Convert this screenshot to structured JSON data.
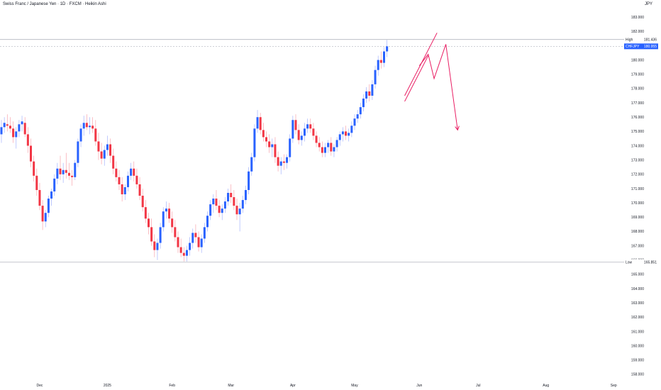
{
  "header": {
    "title": "Swiss Franc / Japanese Yen · 1D · FXCM · Heikin Ashi",
    "currency": "JPY"
  },
  "colors": {
    "up": "#2962ff",
    "down": "#f23645",
    "wick_up": "#a5b4fc",
    "wick_down": "#f8a5ad",
    "level_line": "#b2b5be",
    "trend_lines": "#e91e63",
    "price_badge": "#2962ff",
    "text": "#131722"
  },
  "chart_data": {
    "type": "candlestick",
    "style": "Heikin Ashi",
    "symbol": "CHFJPY",
    "ylim": [
      157.5,
      184
    ],
    "y_ticks": [
      "158.000",
      "159.000",
      "160.000",
      "161.000",
      "162.000",
      "163.000",
      "164.000",
      "165.000",
      "166.000",
      "167.000",
      "168.000",
      "169.000",
      "170.000",
      "171.000",
      "172.000",
      "173.000",
      "174.000",
      "175.000",
      "176.000",
      "177.000",
      "178.000",
      "179.000",
      "180.000",
      "181.000",
      "182.000",
      "183.000"
    ],
    "x_labels": [
      {
        "label": "Dec",
        "bar": 13
      },
      {
        "label": "2025",
        "bar": 36
      },
      {
        "label": "Feb",
        "bar": 58
      },
      {
        "label": "Mar",
        "bar": 78
      },
      {
        "label": "Apr",
        "bar": 99
      },
      {
        "label": "May",
        "bar": 120
      },
      {
        "label": "Jun",
        "bar": 142
      },
      {
        "label": "Jul",
        "bar": 162
      },
      {
        "label": "Aug",
        "bar": 185
      },
      {
        "label": "Sep",
        "bar": 208
      }
    ],
    "high": {
      "label": "High",
      "value": "181.436"
    },
    "low": {
      "label": "Low",
      "value": "165.851"
    },
    "last_price": {
      "symbol": "CHFJPY",
      "value": "180.955"
    },
    "ohlc": [
      [
        174.8,
        175.8,
        174.2,
        175.3
      ],
      [
        175.3,
        176.0,
        174.9,
        175.6
      ],
      [
        175.5,
        176.2,
        175.0,
        175.4
      ],
      [
        175.4,
        176.0,
        174.9,
        175.2
      ],
      [
        175.2,
        175.7,
        174.2,
        174.6
      ],
      [
        174.6,
        175.3,
        173.8,
        175.0
      ],
      [
        175.0,
        175.8,
        174.6,
        175.5
      ],
      [
        175.5,
        176.1,
        175.0,
        175.7
      ],
      [
        175.6,
        176.0,
        174.6,
        174.8
      ],
      [
        174.8,
        175.3,
        173.5,
        174.0
      ],
      [
        174.0,
        174.5,
        172.5,
        172.9
      ],
      [
        172.9,
        173.3,
        171.5,
        171.9
      ],
      [
        171.9,
        172.4,
        170.5,
        170.9
      ],
      [
        170.9,
        171.4,
        169.5,
        169.8
      ],
      [
        169.8,
        170.2,
        168.1,
        168.7
      ],
      [
        168.7,
        169.5,
        168.3,
        169.3
      ],
      [
        169.3,
        170.5,
        169.0,
        170.3
      ],
      [
        170.3,
        171.0,
        169.8,
        170.8
      ],
      [
        170.8,
        172.0,
        170.5,
        171.7
      ],
      [
        171.7,
        172.8,
        171.3,
        172.4
      ],
      [
        172.4,
        173.3,
        171.6,
        172.0
      ],
      [
        172.0,
        172.8,
        171.4,
        172.3
      ],
      [
        172.3,
        173.5,
        171.7,
        172.1
      ],
      [
        172.1,
        172.8,
        171.6,
        171.9
      ],
      [
        171.9,
        172.3,
        171.2,
        171.8
      ],
      [
        171.8,
        173.0,
        171.6,
        172.8
      ],
      [
        172.8,
        174.5,
        172.5,
        174.3
      ],
      [
        174.3,
        175.5,
        173.9,
        175.2
      ],
      [
        175.2,
        176.1,
        174.7,
        175.6
      ],
      [
        175.6,
        176.2,
        175.1,
        175.3
      ],
      [
        175.3,
        176.0,
        174.8,
        175.4
      ],
      [
        175.4,
        176.0,
        174.9,
        175.2
      ],
      [
        175.2,
        175.8,
        174.0,
        174.3
      ],
      [
        174.3,
        174.9,
        173.0,
        173.6
      ],
      [
        173.6,
        174.2,
        172.7,
        173.1
      ],
      [
        173.1,
        174.0,
        172.6,
        173.7
      ],
      [
        173.7,
        174.7,
        173.3,
        174.1
      ],
      [
        174.1,
        174.5,
        172.8,
        173.3
      ],
      [
        173.3,
        173.8,
        172.0,
        172.4
      ],
      [
        172.4,
        172.9,
        171.5,
        171.8
      ],
      [
        171.8,
        172.3,
        170.9,
        171.3
      ],
      [
        171.3,
        171.8,
        170.1,
        170.6
      ],
      [
        170.6,
        171.3,
        170.2,
        171.1
      ],
      [
        171.1,
        172.2,
        170.8,
        171.9
      ],
      [
        171.9,
        172.8,
        171.6,
        172.4
      ],
      [
        172.4,
        172.9,
        171.5,
        171.9
      ],
      [
        171.9,
        172.4,
        171.0,
        171.3
      ],
      [
        171.3,
        171.8,
        170.2,
        170.5
      ],
      [
        170.5,
        171.0,
        169.4,
        169.7
      ],
      [
        169.7,
        170.2,
        168.6,
        168.9
      ],
      [
        168.9,
        169.3,
        167.8,
        168.3
      ],
      [
        168.3,
        168.9,
        167.0,
        167.3
      ],
      [
        167.3,
        167.8,
        166.2,
        166.7
      ],
      [
        166.7,
        167.5,
        166.0,
        167.2
      ],
      [
        167.2,
        168.6,
        166.8,
        168.3
      ],
      [
        168.3,
        169.7,
        168.0,
        169.4
      ],
      [
        169.4,
        170.1,
        168.9,
        169.6
      ],
      [
        169.6,
        170.0,
        168.6,
        168.9
      ],
      [
        168.9,
        169.4,
        167.9,
        168.3
      ],
      [
        168.3,
        168.8,
        167.3,
        167.6
      ],
      [
        167.6,
        168.0,
        166.5,
        166.9
      ],
      [
        166.9,
        167.5,
        166.2,
        166.5
      ],
      [
        166.5,
        166.9,
        165.9,
        166.3
      ],
      [
        166.3,
        167.0,
        165.9,
        166.7
      ],
      [
        166.7,
        167.6,
        166.3,
        167.2
      ],
      [
        167.2,
        168.2,
        166.8,
        167.9
      ],
      [
        167.9,
        168.5,
        167.2,
        167.6
      ],
      [
        167.6,
        168.0,
        166.6,
        166.9
      ],
      [
        166.9,
        167.8,
        166.5,
        167.5
      ],
      [
        167.5,
        168.6,
        167.2,
        168.3
      ],
      [
        168.3,
        169.4,
        168.0,
        169.1
      ],
      [
        169.1,
        170.2,
        168.8,
        169.9
      ],
      [
        169.9,
        170.6,
        169.3,
        170.3
      ],
      [
        170.3,
        170.9,
        169.5,
        169.8
      ],
      [
        169.8,
        170.2,
        169.0,
        169.3
      ],
      [
        169.3,
        169.9,
        168.8,
        169.6
      ],
      [
        169.6,
        170.4,
        169.3,
        170.1
      ],
      [
        170.1,
        171.0,
        169.8,
        170.7
      ],
      [
        170.7,
        171.3,
        170.0,
        170.4
      ],
      [
        170.4,
        170.9,
        169.5,
        169.8
      ],
      [
        169.8,
        170.3,
        168.8,
        169.2
      ],
      [
        169.2,
        170.0,
        168.0,
        169.6
      ],
      [
        169.6,
        170.5,
        169.3,
        170.2
      ],
      [
        170.2,
        171.2,
        169.9,
        170.9
      ],
      [
        170.9,
        172.5,
        170.6,
        172.2
      ],
      [
        172.2,
        173.5,
        171.9,
        173.2
      ],
      [
        173.2,
        175.5,
        172.9,
        175.2
      ],
      [
        175.2,
        176.5,
        174.9,
        176.0
      ],
      [
        176.0,
        176.3,
        174.8,
        175.1
      ],
      [
        175.1,
        175.6,
        174.3,
        174.6
      ],
      [
        174.6,
        175.0,
        173.9,
        174.3
      ],
      [
        174.3,
        174.8,
        173.5,
        173.9
      ],
      [
        173.9,
        174.5,
        173.2,
        174.1
      ],
      [
        174.1,
        174.6,
        172.8,
        173.2
      ],
      [
        173.2,
        173.6,
        172.2,
        172.6
      ],
      [
        172.6,
        173.2,
        172.0,
        172.9
      ],
      [
        172.9,
        173.4,
        172.3,
        172.8
      ],
      [
        172.8,
        173.4,
        172.4,
        173.2
      ],
      [
        173.2,
        174.8,
        172.9,
        174.5
      ],
      [
        174.5,
        176.1,
        174.2,
        175.8
      ],
      [
        175.8,
        176.2,
        174.8,
        175.1
      ],
      [
        175.1,
        175.5,
        174.1,
        174.4
      ],
      [
        174.4,
        175.0,
        174.0,
        174.7
      ],
      [
        174.7,
        175.6,
        174.3,
        175.2
      ],
      [
        175.2,
        175.9,
        174.9,
        175.5
      ],
      [
        175.5,
        175.9,
        174.9,
        175.2
      ],
      [
        175.2,
        175.6,
        174.4,
        174.7
      ],
      [
        174.7,
        175.0,
        173.9,
        174.2
      ],
      [
        174.2,
        174.6,
        173.6,
        173.9
      ],
      [
        173.9,
        174.3,
        173.2,
        173.5
      ],
      [
        173.5,
        174.2,
        173.2,
        173.9
      ],
      [
        173.9,
        174.4,
        173.5,
        174.2
      ],
      [
        174.2,
        174.6,
        173.3,
        173.6
      ],
      [
        173.6,
        174.1,
        173.2,
        173.9
      ],
      [
        173.9,
        174.6,
        173.6,
        174.4
      ],
      [
        174.4,
        175.0,
        174.0,
        174.8
      ],
      [
        174.8,
        175.3,
        174.3,
        175.0
      ],
      [
        175.0,
        175.4,
        174.4,
        174.7
      ],
      [
        174.7,
        175.2,
        174.3,
        174.9
      ],
      [
        174.9,
        175.7,
        174.6,
        175.4
      ],
      [
        175.4,
        176.2,
        175.1,
        175.9
      ],
      [
        175.9,
        176.5,
        175.6,
        176.2
      ],
      [
        176.2,
        177.0,
        175.9,
        176.7
      ],
      [
        176.7,
        177.6,
        176.4,
        177.3
      ],
      [
        177.3,
        178.1,
        177.0,
        177.8
      ],
      [
        177.8,
        178.3,
        177.1,
        177.5
      ],
      [
        177.5,
        178.6,
        177.2,
        178.3
      ],
      [
        178.3,
        179.6,
        178.0,
        179.3
      ],
      [
        179.3,
        180.3,
        178.9,
        180.0
      ],
      [
        180.0,
        180.6,
        179.4,
        179.8
      ],
      [
        179.8,
        180.9,
        179.5,
        180.6
      ],
      [
        180.6,
        181.4,
        180.2,
        180.955
      ]
    ],
    "drawings": {
      "rising_wedge": {
        "lower": [
          [
            137,
            177.1
          ],
          [
            145,
            180.3
          ]
        ],
        "upper": [
          [
            137,
            177.5
          ],
          [
            148,
            181.9
          ]
        ]
      },
      "projection": [
        [
          142,
          179.6
        ],
        [
          145,
          180.4
        ],
        [
          147,
          178.7
        ],
        [
          151,
          181.1
        ],
        [
          155,
          175.1
        ]
      ]
    }
  }
}
